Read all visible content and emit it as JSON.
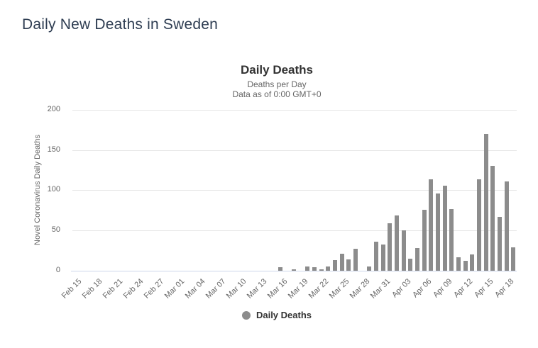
{
  "page": {
    "title": "Daily New Deaths in Sweden"
  },
  "chart": {
    "title": "Daily Deaths",
    "subtitle_line1": "Deaths per Day",
    "subtitle_line2": "Data as of 0:00 GMT+0",
    "y_axis_title": "Novel Coronavirus Daily Deaths",
    "legend_label": "Daily Deaths",
    "colors": {
      "bar": "#8c8c8c",
      "gridline": "#e6e6e6",
      "x_axis_line": "#ccd6eb",
      "chart_title": "#333333",
      "subtitle": "#666666",
      "tick_label": "#666666",
      "page_title": "#2e3d52",
      "legend_text": "#333333"
    }
  },
  "chart_data": {
    "type": "bar",
    "title": "Daily Deaths",
    "subtitle": [
      "Deaths per Day",
      "Data as of 0:00 GMT+0"
    ],
    "xlabel": "",
    "ylabel": "Novel Coronavirus Daily Deaths",
    "ylim": [
      0,
      200
    ],
    "yticks": [
      0,
      50,
      100,
      150,
      200
    ],
    "grid": true,
    "legend": [
      "Daily Deaths"
    ],
    "legend_position": "bottom",
    "bar_color": "#8c8c8c",
    "categories": [
      "Feb 15",
      "Feb 16",
      "Feb 17",
      "Feb 18",
      "Feb 19",
      "Feb 20",
      "Feb 21",
      "Feb 22",
      "Feb 23",
      "Feb 24",
      "Feb 25",
      "Feb 26",
      "Feb 27",
      "Feb 28",
      "Feb 29",
      "Mar 01",
      "Mar 02",
      "Mar 03",
      "Mar 04",
      "Mar 05",
      "Mar 06",
      "Mar 07",
      "Mar 08",
      "Mar 09",
      "Mar 10",
      "Mar 11",
      "Mar 12",
      "Mar 13",
      "Mar 14",
      "Mar 15",
      "Mar 16",
      "Mar 17",
      "Mar 18",
      "Mar 19",
      "Mar 20",
      "Mar 21",
      "Mar 22",
      "Mar 23",
      "Mar 24",
      "Mar 25",
      "Mar 26",
      "Mar 27",
      "Mar 28",
      "Mar 29",
      "Mar 30",
      "Mar 31",
      "Apr 01",
      "Apr 02",
      "Apr 03",
      "Apr 04",
      "Apr 05",
      "Apr 06",
      "Apr 07",
      "Apr 08",
      "Apr 09",
      "Apr 10",
      "Apr 11",
      "Apr 12",
      "Apr 13",
      "Apr 14",
      "Apr 15",
      "Apr 16",
      "Apr 17",
      "Apr 18",
      "Apr 19"
    ],
    "values": [
      0,
      0,
      0,
      0,
      0,
      0,
      0,
      0,
      0,
      0,
      0,
      0,
      0,
      0,
      0,
      0,
      0,
      0,
      0,
      0,
      0,
      0,
      0,
      0,
      0,
      0,
      0,
      0,
      0,
      0,
      4,
      0,
      2,
      0,
      5,
      4,
      2,
      5,
      13,
      21,
      14,
      27,
      0,
      5,
      36,
      33,
      59,
      69,
      50,
      15,
      28,
      76,
      114,
      96,
      106,
      77,
      17,
      12,
      20,
      114,
      170,
      130,
      67,
      111,
      29
    ],
    "xtick_labels": [
      "Feb 15",
      "Feb 18",
      "Feb 21",
      "Feb 24",
      "Feb 27",
      "Mar 01",
      "Mar 04",
      "Mar 07",
      "Mar 10",
      "Mar 13",
      "Mar 16",
      "Mar 19",
      "Mar 22",
      "Mar 25",
      "Mar 28",
      "Mar 31",
      "Apr 03",
      "Apr 06",
      "Apr 09",
      "Apr 12",
      "Apr 15",
      "Apr 18"
    ]
  }
}
